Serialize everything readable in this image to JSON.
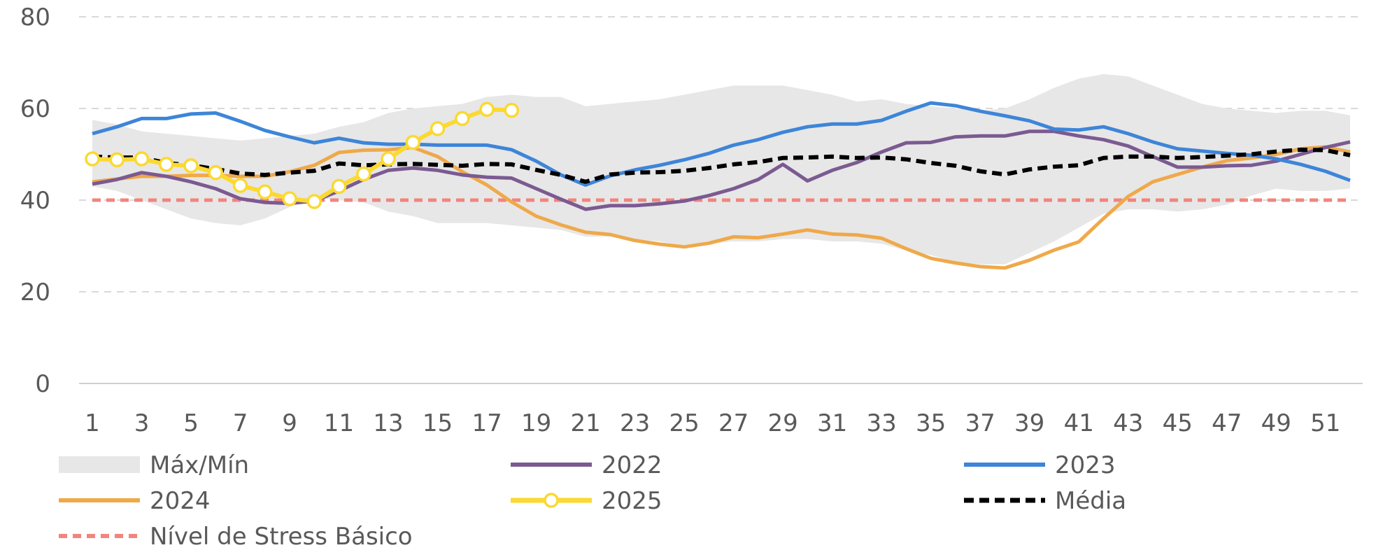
{
  "chart_data": {
    "type": "line",
    "x": [
      1,
      2,
      3,
      4,
      5,
      6,
      7,
      8,
      9,
      10,
      11,
      12,
      13,
      14,
      15,
      16,
      17,
      18,
      19,
      20,
      21,
      22,
      23,
      24,
      25,
      26,
      27,
      28,
      29,
      30,
      31,
      32,
      33,
      34,
      35,
      36,
      37,
      38,
      39,
      40,
      41,
      42,
      43,
      44,
      45,
      46,
      47,
      48,
      49,
      50,
      51,
      52
    ],
    "x_tick_labels": [
      "1",
      "3",
      "5",
      "7",
      "9",
      "11",
      "13",
      "15",
      "17",
      "19",
      "21",
      "23",
      "25",
      "27",
      "29",
      "31",
      "33",
      "35",
      "37",
      "39",
      "41",
      "43",
      "45",
      "47",
      "49",
      "51"
    ],
    "y_tick_labels": [
      "0",
      "20",
      "40",
      "60",
      "80"
    ],
    "ylim": [
      0,
      80
    ],
    "grid": "horizontal-dashed",
    "legend_position": "bottom",
    "band": {
      "name": "Máx/Mín",
      "color": "#e7e7e7",
      "max": [
        57.5,
        56.5,
        55,
        54.5,
        54,
        53.5,
        53,
        53.5,
        54,
        54.5,
        56,
        57,
        59,
        60,
        60.5,
        61,
        62.5,
        63,
        62.5,
        62.5,
        60.5,
        61,
        61.5,
        62,
        63,
        64,
        65,
        65,
        65,
        64,
        63,
        61.5,
        62,
        61,
        60.5,
        60,
        59.5,
        60,
        62,
        64.5,
        66.5,
        67.5,
        67,
        65,
        63,
        61,
        60,
        59.5,
        59,
        59.5,
        59.5,
        58.5
      ],
      "min": [
        43,
        42,
        40,
        38,
        36,
        35,
        34.5,
        36,
        38.5,
        40.5,
        40,
        39.5,
        37.5,
        36.5,
        35,
        35,
        35,
        34.5,
        34,
        33.5,
        32,
        32,
        31.5,
        31,
        30,
        30.5,
        31,
        31,
        31.5,
        31.5,
        31,
        31,
        30.5,
        29,
        28,
        26.5,
        26,
        26,
        28.5,
        31,
        34,
        37,
        38,
        38,
        37.5,
        38,
        39,
        41,
        42.5,
        42,
        42,
        42.5
      ]
    },
    "series": [
      {
        "name": "2022",
        "color": "#7b5a91",
        "style": "solid",
        "values": [
          43.5,
          44.5,
          46,
          45.2,
          44,
          42.5,
          40.3,
          39.5,
          39.3,
          39.8,
          42,
          44.5,
          46.5,
          47,
          46.5,
          45.5,
          45,
          44.8,
          42.5,
          40.2,
          38,
          38.8,
          38.8,
          39.2,
          39.8,
          41,
          42.5,
          44.5,
          47.8,
          44.2,
          46.5,
          48.2,
          50.5,
          52.5,
          52.6,
          53.8,
          54,
          54,
          55,
          55,
          54,
          53.2,
          51.8,
          49.5,
          47.2,
          47.2,
          47.5,
          47.6,
          48.5,
          50,
          51.5,
          52.7
        ]
      },
      {
        "name": "2023",
        "color": "#3d85d8",
        "style": "solid",
        "values": [
          54.5,
          56,
          57.8,
          57.8,
          58.8,
          59,
          57.2,
          55.2,
          53.8,
          52.5,
          53.5,
          52.5,
          52.2,
          52.2,
          52,
          52,
          52,
          51,
          48.5,
          45.5,
          43.3,
          45.3,
          46.6,
          47.6,
          48.8,
          50.2,
          52,
          53.2,
          54.8,
          56,
          56.6,
          56.6,
          57.4,
          59.4,
          61.2,
          60.6,
          59.4,
          58.4,
          57.3,
          55.5,
          55.3,
          56,
          54.5,
          52.7,
          51.2,
          50.7,
          50.2,
          49.8,
          49,
          47.8,
          46.3,
          44.3
        ]
      },
      {
        "name": "2024",
        "color": "#efa94a",
        "style": "solid",
        "values": [
          44,
          44.6,
          45.2,
          45.2,
          45.4,
          45.4,
          45.2,
          45.2,
          46.2,
          47.6,
          50.4,
          50.9,
          51,
          51.5,
          49.5,
          46.2,
          43.3,
          39.6,
          36.5,
          34.6,
          33,
          32.5,
          31.2,
          30.4,
          29.8,
          30.6,
          32,
          31.8,
          32.6,
          33.5,
          32.6,
          32.4,
          31.7,
          29.4,
          27.3,
          26.3,
          25.5,
          25.2,
          26.9,
          29.1,
          30.9,
          36,
          40.8,
          44,
          45.6,
          47.2,
          48.6,
          49.2,
          50,
          51.2,
          51.6,
          50.5
        ]
      },
      {
        "name": "2025",
        "color": "#fbd930",
        "style": "solid-markers",
        "values": [
          49,
          48.8,
          49,
          47.8,
          47.5,
          46,
          43.2,
          41.8,
          40.3,
          39.7,
          43,
          45.7,
          49,
          52.6,
          55.6,
          57.8,
          59.8,
          59.6,
          null,
          null,
          null,
          null,
          null,
          null,
          null,
          null,
          null,
          null,
          null,
          null,
          null,
          null,
          null,
          null,
          null,
          null,
          null,
          null,
          null,
          null,
          null,
          null,
          null,
          null,
          null,
          null,
          null,
          null,
          null,
          null,
          null,
          null
        ]
      },
      {
        "name": "Média",
        "color": "#000000",
        "style": "dashed",
        "values": [
          49.5,
          49.3,
          49.3,
          48.1,
          47.6,
          46.8,
          45.8,
          45.5,
          46,
          46.4,
          48,
          47.6,
          47.8,
          47.9,
          47.7,
          47.5,
          47.9,
          47.8,
          46.6,
          45.5,
          44,
          45.6,
          46,
          46.1,
          46.4,
          47,
          47.8,
          48.3,
          49.2,
          49.3,
          49.5,
          49.2,
          49.3,
          48.9,
          48.1,
          47.5,
          46.3,
          45.6,
          46.7,
          47.3,
          47.6,
          49.2,
          49.5,
          49.5,
          49.2,
          49.4,
          49.7,
          50,
          50.6,
          51,
          50.9,
          49.8
        ]
      },
      {
        "name": "Nível de Stress Básico",
        "color": "#f0857f",
        "style": "dashed-thick",
        "values": [
          40,
          40,
          40,
          40,
          40,
          40,
          40,
          40,
          40,
          40,
          40,
          40,
          40,
          40,
          40,
          40,
          40,
          40,
          40,
          40,
          40,
          40,
          40,
          40,
          40,
          40,
          40,
          40,
          40,
          40,
          40,
          40,
          40,
          40,
          40,
          40,
          40,
          40,
          40,
          40,
          40,
          40,
          40,
          40,
          40,
          40,
          40,
          40,
          40,
          40,
          40,
          40
        ]
      }
    ]
  }
}
